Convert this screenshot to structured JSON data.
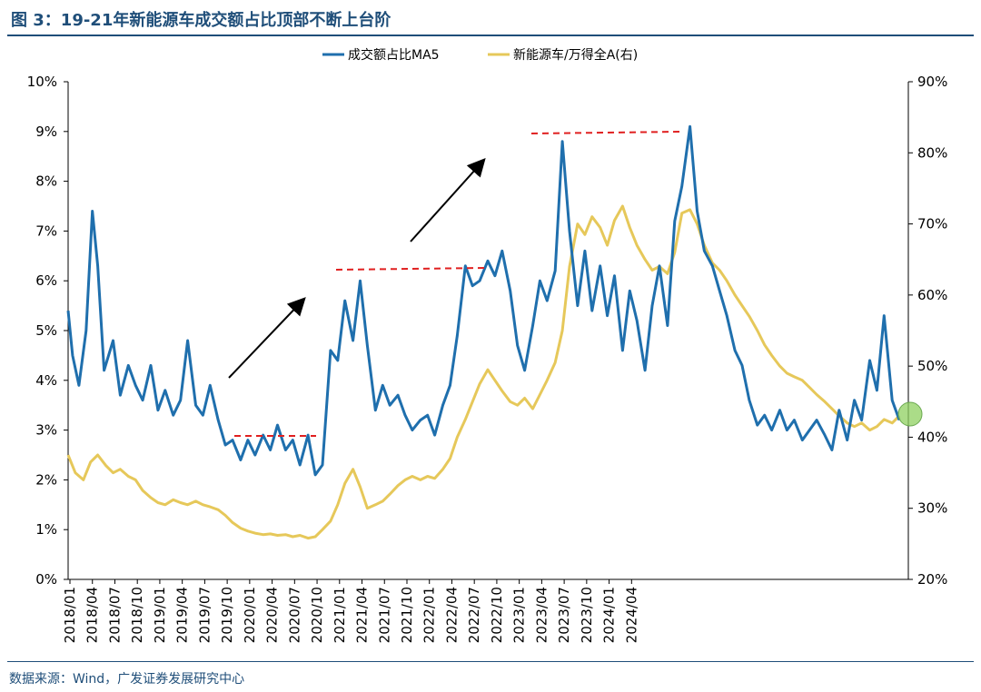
{
  "header": {
    "title": "图 3：19-21年新能源车成交额占比顶部不断上台阶"
  },
  "footer": {
    "source": "数据来源：Wind，广发证券发展研究中心"
  },
  "colors": {
    "primary": "#1f6fad",
    "secondary": "#e6c85a",
    "guide": "#e02020",
    "marker": "#8fd060"
  },
  "chart_data": {
    "type": "line",
    "title": "19-21年新能源车成交额占比顶部不断上台阶",
    "xlabel": "",
    "ylabel": "",
    "legend_position": "top-center",
    "x_ticks": [
      "2018/01",
      "2018/04",
      "2018/07",
      "2018/10",
      "2019/01",
      "2019/04",
      "2019/07",
      "2019/10",
      "2020/01",
      "2020/04",
      "2020/07",
      "2020/10",
      "2021/01",
      "2021/04",
      "2021/07",
      "2021/10",
      "2022/01",
      "2022/04",
      "2022/07",
      "2022/10",
      "2023/01",
      "2023/04",
      "2023/07",
      "2023/10",
      "2024/01",
      "2024/04"
    ],
    "y_left": {
      "ticks": [
        "0%",
        "1%",
        "2%",
        "3%",
        "4%",
        "5%",
        "6%",
        "7%",
        "8%",
        "9%",
        "10%"
      ],
      "range": [
        0,
        10
      ],
      "unit": "%"
    },
    "y_right": {
      "ticks": [
        "20%",
        "30%",
        "40%",
        "50%",
        "60%",
        "70%",
        "80%",
        "90%"
      ],
      "range": [
        20,
        90
      ],
      "unit": "%"
    },
    "series": [
      {
        "name": "成交额占比MA5",
        "axis": "left",
        "color": "#1f6fad",
        "points": [
          [
            2018.0,
            5.4
          ],
          [
            2018.05,
            4.5
          ],
          [
            2018.12,
            3.9
          ],
          [
            2018.2,
            5.0
          ],
          [
            2018.27,
            7.4
          ],
          [
            2018.33,
            6.3
          ],
          [
            2018.4,
            4.2
          ],
          [
            2018.5,
            4.8
          ],
          [
            2018.58,
            3.7
          ],
          [
            2018.67,
            4.3
          ],
          [
            2018.75,
            3.9
          ],
          [
            2018.83,
            3.6
          ],
          [
            2018.92,
            4.3
          ],
          [
            2019.0,
            3.4
          ],
          [
            2019.08,
            3.8
          ],
          [
            2019.17,
            3.3
          ],
          [
            2019.25,
            3.6
          ],
          [
            2019.33,
            4.8
          ],
          [
            2019.42,
            3.5
          ],
          [
            2019.5,
            3.3
          ],
          [
            2019.58,
            3.9
          ],
          [
            2019.67,
            3.2
          ],
          [
            2019.75,
            2.7
          ],
          [
            2019.83,
            2.8
          ],
          [
            2019.92,
            2.4
          ],
          [
            2020.0,
            2.8
          ],
          [
            2020.08,
            2.5
          ],
          [
            2020.17,
            2.9
          ],
          [
            2020.25,
            2.6
          ],
          [
            2020.33,
            3.1
          ],
          [
            2020.42,
            2.6
          ],
          [
            2020.5,
            2.8
          ],
          [
            2020.58,
            2.3
          ],
          [
            2020.67,
            2.9
          ],
          [
            2020.75,
            2.1
          ],
          [
            2020.83,
            2.3
          ],
          [
            2020.92,
            4.6
          ],
          [
            2021.0,
            4.4
          ],
          [
            2021.08,
            5.6
          ],
          [
            2021.17,
            4.8
          ],
          [
            2021.25,
            6.0
          ],
          [
            2021.33,
            4.7
          ],
          [
            2021.42,
            3.4
          ],
          [
            2021.5,
            3.9
          ],
          [
            2021.58,
            3.5
          ],
          [
            2021.67,
            3.7
          ],
          [
            2021.75,
            3.3
          ],
          [
            2021.83,
            3.0
          ],
          [
            2021.92,
            3.2
          ],
          [
            2022.0,
            3.3
          ],
          [
            2022.08,
            2.9
          ],
          [
            2022.17,
            3.5
          ],
          [
            2022.25,
            3.9
          ],
          [
            2022.33,
            4.9
          ],
          [
            2022.42,
            6.3
          ],
          [
            2022.5,
            5.9
          ],
          [
            2022.58,
            6.0
          ],
          [
            2022.67,
            6.4
          ],
          [
            2022.75,
            6.1
          ],
          [
            2022.83,
            6.6
          ],
          [
            2022.92,
            5.8
          ],
          [
            2023.0,
            4.7
          ],
          [
            2023.08,
            4.2
          ],
          [
            2023.17,
            5.1
          ],
          [
            2023.25,
            6.0
          ],
          [
            2023.33,
            5.6
          ],
          [
            2023.42,
            6.2
          ],
          [
            2023.5,
            8.8
          ],
          [
            2023.58,
            7.0
          ],
          [
            2023.67,
            5.5
          ],
          [
            2023.75,
            6.6
          ],
          [
            2023.83,
            5.4
          ],
          [
            2023.92,
            6.3
          ],
          [
            2024.0,
            5.3
          ],
          [
            2024.08,
            6.1
          ],
          [
            2024.17,
            4.6
          ],
          [
            2024.25,
            5.8
          ],
          [
            2024.33,
            5.2
          ],
          [
            2024.42,
            4.2
          ],
          [
            2024.5,
            5.5
          ],
          [
            2024.58,
            6.3
          ],
          [
            2024.67,
            5.1
          ],
          [
            2024.75,
            7.2
          ],
          [
            2024.83,
            7.9
          ],
          [
            2024.92,
            9.1
          ],
          [
            2025.0,
            7.4
          ],
          [
            2025.08,
            6.6
          ],
          [
            2025.17,
            6.3
          ],
          [
            2025.25,
            5.8
          ],
          [
            2025.33,
            5.3
          ],
          [
            2025.42,
            4.6
          ],
          [
            2025.5,
            4.3
          ],
          [
            2025.58,
            3.6
          ],
          [
            2025.67,
            3.1
          ],
          [
            2025.75,
            3.3
          ],
          [
            2025.83,
            3.0
          ],
          [
            2025.92,
            3.4
          ],
          [
            2026.0,
            3.0
          ],
          [
            2026.08,
            3.2
          ],
          [
            2026.17,
            2.8
          ],
          [
            2026.25,
            3.0
          ],
          [
            2026.33,
            3.2
          ],
          [
            2026.42,
            2.9
          ],
          [
            2026.5,
            2.6
          ],
          [
            2026.58,
            3.4
          ],
          [
            2026.67,
            2.8
          ],
          [
            2026.75,
            3.6
          ],
          [
            2026.83,
            3.2
          ],
          [
            2026.92,
            4.4
          ],
          [
            2027.0,
            3.8
          ],
          [
            2027.08,
            5.3
          ],
          [
            2027.17,
            3.6
          ],
          [
            2027.25,
            3.2
          ]
        ]
      },
      {
        "name": "新能源车/万得全A(右)",
        "axis": "right",
        "color": "#e6c85a",
        "points": [
          [
            2018.0,
            37.5
          ],
          [
            2018.08,
            35.0
          ],
          [
            2018.17,
            34.0
          ],
          [
            2018.25,
            36.5
          ],
          [
            2018.33,
            37.5
          ],
          [
            2018.42,
            36.0
          ],
          [
            2018.5,
            35.0
          ],
          [
            2018.58,
            35.5
          ],
          [
            2018.67,
            34.5
          ],
          [
            2018.75,
            34.0
          ],
          [
            2018.83,
            32.5
          ],
          [
            2018.92,
            31.5
          ],
          [
            2019.0,
            30.8
          ],
          [
            2019.08,
            30.5
          ],
          [
            2019.17,
            31.2
          ],
          [
            2019.25,
            30.8
          ],
          [
            2019.33,
            30.5
          ],
          [
            2019.42,
            31.0
          ],
          [
            2019.5,
            30.5
          ],
          [
            2019.58,
            30.2
          ],
          [
            2019.67,
            29.8
          ],
          [
            2019.75,
            29.0
          ],
          [
            2019.83,
            28.0
          ],
          [
            2019.92,
            27.2
          ],
          [
            2020.0,
            26.8
          ],
          [
            2020.08,
            26.5
          ],
          [
            2020.17,
            26.3
          ],
          [
            2020.25,
            26.4
          ],
          [
            2020.33,
            26.2
          ],
          [
            2020.42,
            26.3
          ],
          [
            2020.5,
            26.0
          ],
          [
            2020.58,
            26.2
          ],
          [
            2020.67,
            25.8
          ],
          [
            2020.75,
            26.0
          ],
          [
            2020.83,
            27.0
          ],
          [
            2020.92,
            28.2
          ],
          [
            2021.0,
            30.5
          ],
          [
            2021.08,
            33.5
          ],
          [
            2021.17,
            35.5
          ],
          [
            2021.25,
            33.0
          ],
          [
            2021.33,
            30.0
          ],
          [
            2021.42,
            30.5
          ],
          [
            2021.5,
            31.0
          ],
          [
            2021.58,
            32.0
          ],
          [
            2021.67,
            33.2
          ],
          [
            2021.75,
            34.0
          ],
          [
            2021.83,
            34.5
          ],
          [
            2021.92,
            34.0
          ],
          [
            2022.0,
            34.5
          ],
          [
            2022.08,
            34.2
          ],
          [
            2022.17,
            35.5
          ],
          [
            2022.25,
            37.0
          ],
          [
            2022.33,
            40.0
          ],
          [
            2022.42,
            42.5
          ],
          [
            2022.5,
            45.0
          ],
          [
            2022.58,
            47.5
          ],
          [
            2022.67,
            49.5
          ],
          [
            2022.75,
            48.0
          ],
          [
            2022.83,
            46.5
          ],
          [
            2022.92,
            45.0
          ],
          [
            2023.0,
            44.5
          ],
          [
            2023.08,
            45.5
          ],
          [
            2023.17,
            44.0
          ],
          [
            2023.25,
            46.0
          ],
          [
            2023.33,
            48.0
          ],
          [
            2023.42,
            50.5
          ],
          [
            2023.5,
            55.0
          ],
          [
            2023.58,
            64.0
          ],
          [
            2023.67,
            70.0
          ],
          [
            2023.75,
            68.5
          ],
          [
            2023.83,
            71.0
          ],
          [
            2023.92,
            69.5
          ],
          [
            2024.0,
            67.0
          ],
          [
            2024.08,
            70.5
          ],
          [
            2024.17,
            72.5
          ],
          [
            2024.25,
            69.5
          ],
          [
            2024.33,
            67.0
          ],
          [
            2024.42,
            65.0
          ],
          [
            2024.5,
            63.5
          ],
          [
            2024.58,
            64.0
          ],
          [
            2024.67,
            63.0
          ],
          [
            2024.75,
            66.0
          ],
          [
            2024.83,
            71.5
          ],
          [
            2024.92,
            72.0
          ],
          [
            2025.0,
            70.0
          ],
          [
            2025.08,
            67.0
          ],
          [
            2025.17,
            64.5
          ],
          [
            2025.25,
            63.5
          ],
          [
            2025.33,
            62.0
          ],
          [
            2025.42,
            60.0
          ],
          [
            2025.5,
            58.5
          ],
          [
            2025.58,
            57.0
          ],
          [
            2025.67,
            55.0
          ],
          [
            2025.75,
            53.0
          ],
          [
            2025.83,
            51.5
          ],
          [
            2025.92,
            50.0
          ],
          [
            2026.0,
            49.0
          ],
          [
            2026.08,
            48.5
          ],
          [
            2026.17,
            48.0
          ],
          [
            2026.25,
            47.0
          ],
          [
            2026.33,
            46.0
          ],
          [
            2026.42,
            45.0
          ],
          [
            2026.5,
            44.0
          ],
          [
            2026.58,
            43.0
          ],
          [
            2026.67,
            42.0
          ],
          [
            2026.75,
            41.5
          ],
          [
            2026.83,
            42.0
          ],
          [
            2026.92,
            41.0
          ],
          [
            2027.0,
            41.5
          ],
          [
            2027.08,
            42.5
          ],
          [
            2027.17,
            42.0
          ],
          [
            2027.25,
            43.0
          ]
        ]
      }
    ]
  }
}
